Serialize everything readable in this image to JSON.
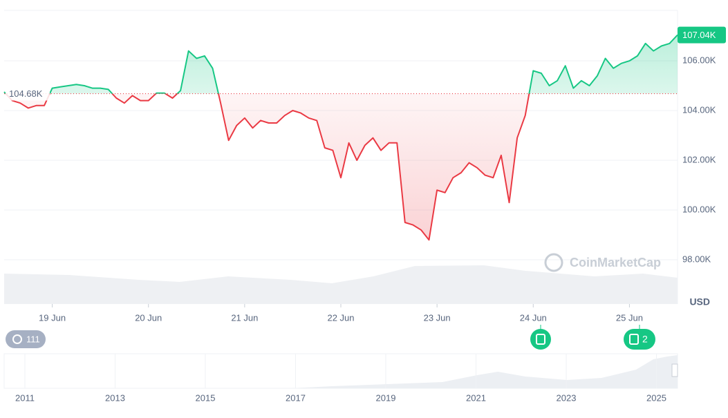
{
  "chart_data": {
    "type": "line",
    "values": [
      104750,
      104400,
      104300,
      104100,
      104200,
      104200,
      104900,
      104950,
      105000,
      105050,
      105000,
      104900,
      104900,
      104850,
      104500,
      104300,
      104600,
      104400,
      104400,
      104700,
      104700,
      104500,
      104800,
      106400,
      106100,
      106200,
      105700,
      104300,
      102800,
      103400,
      103700,
      103300,
      103600,
      103500,
      103500,
      103800,
      104000,
      103900,
      103700,
      103600,
      102500,
      102400,
      101300,
      102700,
      102000,
      102600,
      102900,
      102400,
      102700,
      102700,
      99500,
      99400,
      99200,
      98800,
      100800,
      100700,
      101300,
      101500,
      101900,
      101700,
      101400,
      101300,
      102200,
      100300,
      102900,
      103800,
      105600,
      105500,
      105000,
      105200,
      105800,
      104900,
      105200,
      105000,
      105400,
      106100,
      105700,
      105900,
      106000,
      106200,
      106700,
      106400,
      106600,
      106700,
      107040
    ],
    "current_label": "107.04K",
    "baseline": {
      "value": 104680,
      "label": "104.68K"
    },
    "up_color": "#16c784",
    "down_color": "#ea3943",
    "xlim": [
      0,
      84
    ],
    "xticks": [
      {
        "value": 6,
        "label": "19 Jun"
      },
      {
        "value": 18,
        "label": "20 Jun"
      },
      {
        "value": 30,
        "label": "21 Jun"
      },
      {
        "value": 42,
        "label": "22 Jun"
      },
      {
        "value": 54,
        "label": "23 Jun"
      },
      {
        "value": 66,
        "label": "24 Jun"
      },
      {
        "value": 78,
        "label": "25 Jun"
      }
    ],
    "ylim": [
      96220,
      108030
    ],
    "yticks": [
      {
        "value": 98000,
        "label": "98.00K"
      },
      {
        "value": 100000,
        "label": "100.00K"
      },
      {
        "value": 102000,
        "label": "102.00K"
      },
      {
        "value": 104000,
        "label": "104.00K"
      },
      {
        "value": 106000,
        "label": "106.00K"
      }
    ],
    "grid": true,
    "currency": "USD",
    "watermark": "CoinMarketCap",
    "history_badge": "111",
    "news_badge": "2",
    "navigator_labels": [
      "2011",
      "2013",
      "2015",
      "2017",
      "2019",
      "2021",
      "2023",
      "2025"
    ]
  }
}
